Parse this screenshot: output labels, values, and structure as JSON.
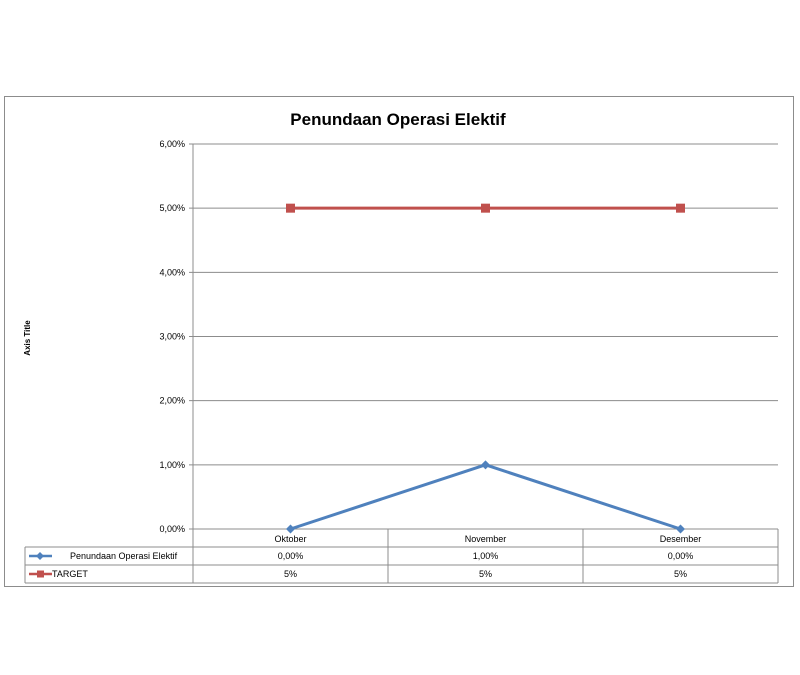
{
  "chart_data": {
    "type": "line",
    "title": "Penundaan Operasi Elektif",
    "ylabel": "Axis Title",
    "xlabel": "",
    "categories": [
      "Oktober",
      "November",
      "Desember"
    ],
    "ylim": [
      0,
      0.06
    ],
    "yticks": [
      0,
      0.01,
      0.02,
      0.03,
      0.04,
      0.05,
      0.06
    ],
    "ytick_labels": [
      "0,00%",
      "1,00%",
      "2,00%",
      "3,00%",
      "4,00%",
      "5,00%",
      "6,00%"
    ],
    "grid": true,
    "legend": "data-table",
    "series": [
      {
        "name": "Penundaan Operasi Elektif",
        "values": [
          0,
          0.01,
          0
        ],
        "labels": [
          "0,00%",
          "1,00%",
          "0,00%"
        ],
        "color": "#4f81bd",
        "marker": "diamond"
      },
      {
        "name": "TARGET",
        "values": [
          0.05,
          0.05,
          0.05
        ],
        "labels": [
          "5%",
          "5%",
          "5%"
        ],
        "color": "#c0504d",
        "marker": "square"
      }
    ]
  }
}
